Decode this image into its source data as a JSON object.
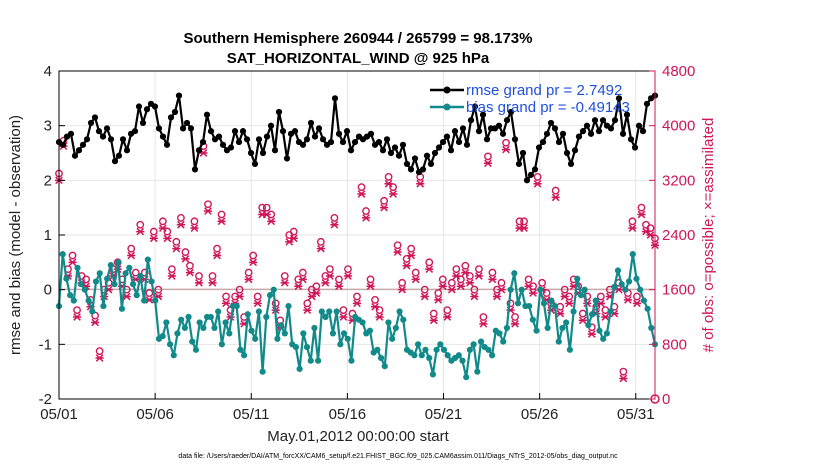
{
  "chart_data": {
    "type": "line",
    "title": "Southern Hemisphere 260944 / 265799 = 98.173%",
    "subtitle": "SAT_HORIZONTAL_WIND @ 925 hPa",
    "xlabel": "May.01,2012 00:00:00 start",
    "ylabel_left": "rmse and bias (model - observation)",
    "ylabel_right": "# of obs: o=possible; ×=assimilated",
    "footnote": "data file: /Users/raeder/DAI/ATM_forcXX/CAM6_setup/f.e21.FHIST_BGC.f09_025.CAM6assim.011/Diags_NTrS_2012-05/obs_diag_output.nc",
    "x_ticks": [
      {
        "value": 1,
        "label": "05/01"
      },
      {
        "value": 6,
        "label": "05/06"
      },
      {
        "value": 11,
        "label": "05/11"
      },
      {
        "value": 16,
        "label": "05/16"
      },
      {
        "value": 21,
        "label": "05/21"
      },
      {
        "value": 26,
        "label": "05/26"
      },
      {
        "value": 31,
        "label": "05/31"
      }
    ],
    "xlim": [
      1,
      32
    ],
    "ylim_left": [
      -2,
      4
    ],
    "left_ticks": [
      "-2",
      "-1",
      "0",
      "1",
      "2",
      "3",
      "4"
    ],
    "ylim_right": [
      0,
      4800
    ],
    "right_ticks": [
      "0",
      "800",
      "1600",
      "2400",
      "3200",
      "4000",
      "4800"
    ],
    "legend": [
      {
        "label": "rmse grand pr = 2.7492",
        "color": "#000000"
      },
      {
        "label": "bias grand pr = -0.49143",
        "color": "#138a8a"
      }
    ],
    "colors": {
      "rmse": "#000000",
      "bias": "#138a8a",
      "counts": "#d0165a",
      "zero_line": "#c8a8a8",
      "grid": "#e6e6e6"
    },
    "series": [
      {
        "name": "rmse",
        "axis": "left",
        "values": [
          2.7,
          2.65,
          2.8,
          2.85,
          2.45,
          2.55,
          2.65,
          2.75,
          3.05,
          3.15,
          2.9,
          2.8,
          2.95,
          2.75,
          2.35,
          2.45,
          2.75,
          2.55,
          2.85,
          2.9,
          3.35,
          3.05,
          3.3,
          3.4,
          3.35,
          2.95,
          2.8,
          2.65,
          3.15,
          3.25,
          3.55,
          2.95,
          3.05,
          2.95,
          2.2,
          2.55,
          2.7,
          3.2,
          2.9,
          2.75,
          2.8,
          2.65,
          2.55,
          2.6,
          2.9,
          2.7,
          2.9,
          2.75,
          2.5,
          2.3,
          2.75,
          2.5,
          2.8,
          3.0,
          2.55,
          3.25,
          2.9,
          2.4,
          2.85,
          2.9,
          2.7,
          2.65,
          2.75,
          3.05,
          2.8,
          2.95,
          2.75,
          2.65,
          2.7,
          3.5,
          2.85,
          2.7,
          2.9,
          2.55,
          2.7,
          2.8,
          2.75,
          2.8,
          2.85,
          2.65,
          2.7,
          2.55,
          2.75,
          2.5,
          2.6,
          2.45,
          2.65,
          2.3,
          2.2,
          2.4,
          2.15,
          2.2,
          2.45,
          2.3,
          2.5,
          2.6,
          2.7,
          2.8,
          2.55,
          2.9,
          2.7,
          2.95,
          2.65,
          3.1,
          3.35,
          2.9,
          3.2,
          2.75,
          2.95,
          2.95,
          3.0,
          2.85,
          3.1,
          3.25,
          2.75,
          2.3,
          2.5,
          2.0,
          2.1,
          2.2,
          2.6,
          2.7,
          2.85,
          3.05,
          2.95,
          2.7,
          2.85,
          2.5,
          2.3,
          2.55,
          2.8,
          2.9,
          3.0,
          2.85,
          3.1,
          2.9,
          3.1,
          3.0,
          2.95,
          3.1,
          3.5,
          2.85,
          3.2,
          2.75,
          2.6,
          3.0,
          2.9,
          3.4,
          3.5,
          3.55
        ]
      },
      {
        "name": "bias",
        "axis": "left",
        "values": [
          -0.3,
          0.65,
          0.2,
          -0.1,
          -0.2,
          0.4,
          0.1,
          0.0,
          -0.2,
          -0.4,
          0.15,
          0.3,
          -0.3,
          0.2,
          0.45,
          0.1,
          0.5,
          -0.35,
          0.3,
          0.4,
          0.1,
          -0.1,
          0.25,
          -0.2,
          0.55,
          0.15,
          -0.2,
          -0.9,
          -0.85,
          -0.6,
          -1.0,
          -1.2,
          -0.8,
          -0.55,
          -0.7,
          -0.5,
          -0.95,
          -1.1,
          -0.6,
          -0.7,
          -0.5,
          -0.5,
          -0.7,
          -0.4,
          -1.0,
          -0.6,
          -0.8,
          -0.3,
          -0.3,
          -1.1,
          -1.2,
          -0.45,
          -0.75,
          -0.9,
          -0.4,
          -1.5,
          -0.5,
          -0.1,
          0.0,
          -0.9,
          -0.65,
          -0.8,
          -0.3,
          -1.0,
          -1.05,
          -1.45,
          -0.8,
          -1.05,
          -1.3,
          -0.7,
          -1.3,
          -0.4,
          -0.5,
          -0.4,
          -0.8,
          -0.4,
          -1.0,
          -0.8,
          -0.9,
          -1.3,
          -0.5,
          -0.55,
          -0.6,
          -0.8,
          -0.75,
          -1.15,
          -1.1,
          -1.25,
          -1.4,
          -0.6,
          -0.9,
          -0.7,
          -0.4,
          -0.55,
          -1.1,
          -1.15,
          -1.2,
          -1.0,
          -1.2,
          -1.1,
          -1.25,
          -1.55,
          -1.1,
          -1.0,
          -1.1,
          -1.2,
          -1.3,
          -1.25,
          -1.2,
          -1.3,
          -1.6,
          -1.1,
          -1.0,
          -1.5,
          -0.95,
          -1.05,
          -1.1,
          -1.2,
          -0.75,
          -0.8,
          -0.95,
          -0.7,
          0.0,
          0.3,
          -0.25,
          0.0,
          -0.3,
          -0.3,
          -0.55,
          -0.75,
          0.0,
          -0.25,
          -0.7,
          -0.2,
          -0.3,
          -0.95,
          -0.7,
          -0.6,
          -1.1,
          -0.4,
          0.2,
          -0.1,
          0.0,
          -0.65,
          -0.45,
          -0.2,
          -0.75,
          -0.9,
          -0.8,
          -0.4,
          0.05,
          0.35,
          0.1,
          0.0,
          0.15,
          0.65,
          0.2,
          0.0,
          -0.2,
          -0.35,
          -0.7,
          -1.0
        ]
      },
      {
        "name": "obs_possible",
        "axis": "right",
        "values": [
          3300,
          3780,
          1900,
          2100,
          1300,
          1800,
          1750,
          1450,
          1220,
          700,
          1600,
          1700,
          1900,
          2000,
          1750,
          1600,
          2200,
          1850,
          2550,
          1850,
          1550,
          2450,
          1600,
          2600,
          2450,
          1900,
          2300,
          2650,
          2150,
          1950,
          2600,
          1800,
          3700,
          2850,
          1800,
          2200,
          2700,
          1500,
          1300,
          1500,
          1600,
          1200,
          1850,
          2100,
          1500,
          2800,
          2800,
          2700,
          1400,
          1150,
          1800,
          2400,
          2450,
          1750,
          1850,
          1400,
          1600,
          1650,
          2300,
          1800,
          1900,
          2650,
          1750,
          1300,
          1900,
          1250,
          1500,
          3100,
          2750,
          1750,
          1450,
          1300,
          2900,
          3250,
          3100,
          2250,
          1700,
          2050,
          2200,
          1850,
          3250,
          1600,
          2000,
          1250,
          1550,
          1750,
          1300,
          1700,
          1900,
          1750,
          1950,
          1800,
          1600,
          1900,
          1200,
          3550,
          1850,
          1600,
          1700,
          3750,
          1400,
          1200,
          2600,
          2600,
          1750,
          1650,
          3250,
          1700,
          1550,
          1400,
          3050,
          1350,
          1600,
          1500,
          1750,
          1650,
          1250,
          1500,
          1050,
          1350,
          1500,
          1300,
          1600,
          1350,
          1700,
          400,
          1550,
          2600,
          1500,
          2800,
          2550,
          2500,
          2350
        ]
      },
      {
        "name": "obs_assimilated",
        "axis": "right",
        "values": [
          3200,
          3700,
          1800,
          2000,
          1200,
          1700,
          1650,
          1350,
          1120,
          600,
          1500,
          1600,
          1800,
          1900,
          1650,
          1500,
          2100,
          1750,
          2450,
          1750,
          1450,
          2350,
          1500,
          2500,
          2350,
          1800,
          2200,
          2550,
          2050,
          1850,
          2500,
          1700,
          3600,
          2750,
          1700,
          2100,
          2600,
          1400,
          1200,
          1400,
          1500,
          1100,
          1750,
          2000,
          1400,
          2700,
          2700,
          2600,
          1300,
          1050,
          1700,
          2300,
          2350,
          1650,
          1750,
          1300,
          1500,
          1550,
          2200,
          1700,
          1800,
          2550,
          1650,
          1200,
          1800,
          1150,
          1400,
          3000,
          2650,
          1650,
          1350,
          1200,
          2800,
          3150,
          3000,
          2150,
          1600,
          1950,
          2100,
          1750,
          3150,
          1500,
          1900,
          1150,
          1450,
          1650,
          1200,
          1600,
          1800,
          1650,
          1850,
          1700,
          1500,
          1800,
          1100,
          3450,
          1750,
          1500,
          1600,
          3650,
          1300,
          1100,
          2500,
          2500,
          1650,
          1550,
          3150,
          1600,
          1450,
          1300,
          2950,
          1250,
          1500,
          1400,
          1650,
          1550,
          1150,
          1400,
          950,
          1250,
          1400,
          1200,
          1500,
          1250,
          1600,
          300,
          1450,
          2500,
          1400,
          2700,
          2450,
          2400,
          2250
        ]
      }
    ]
  }
}
